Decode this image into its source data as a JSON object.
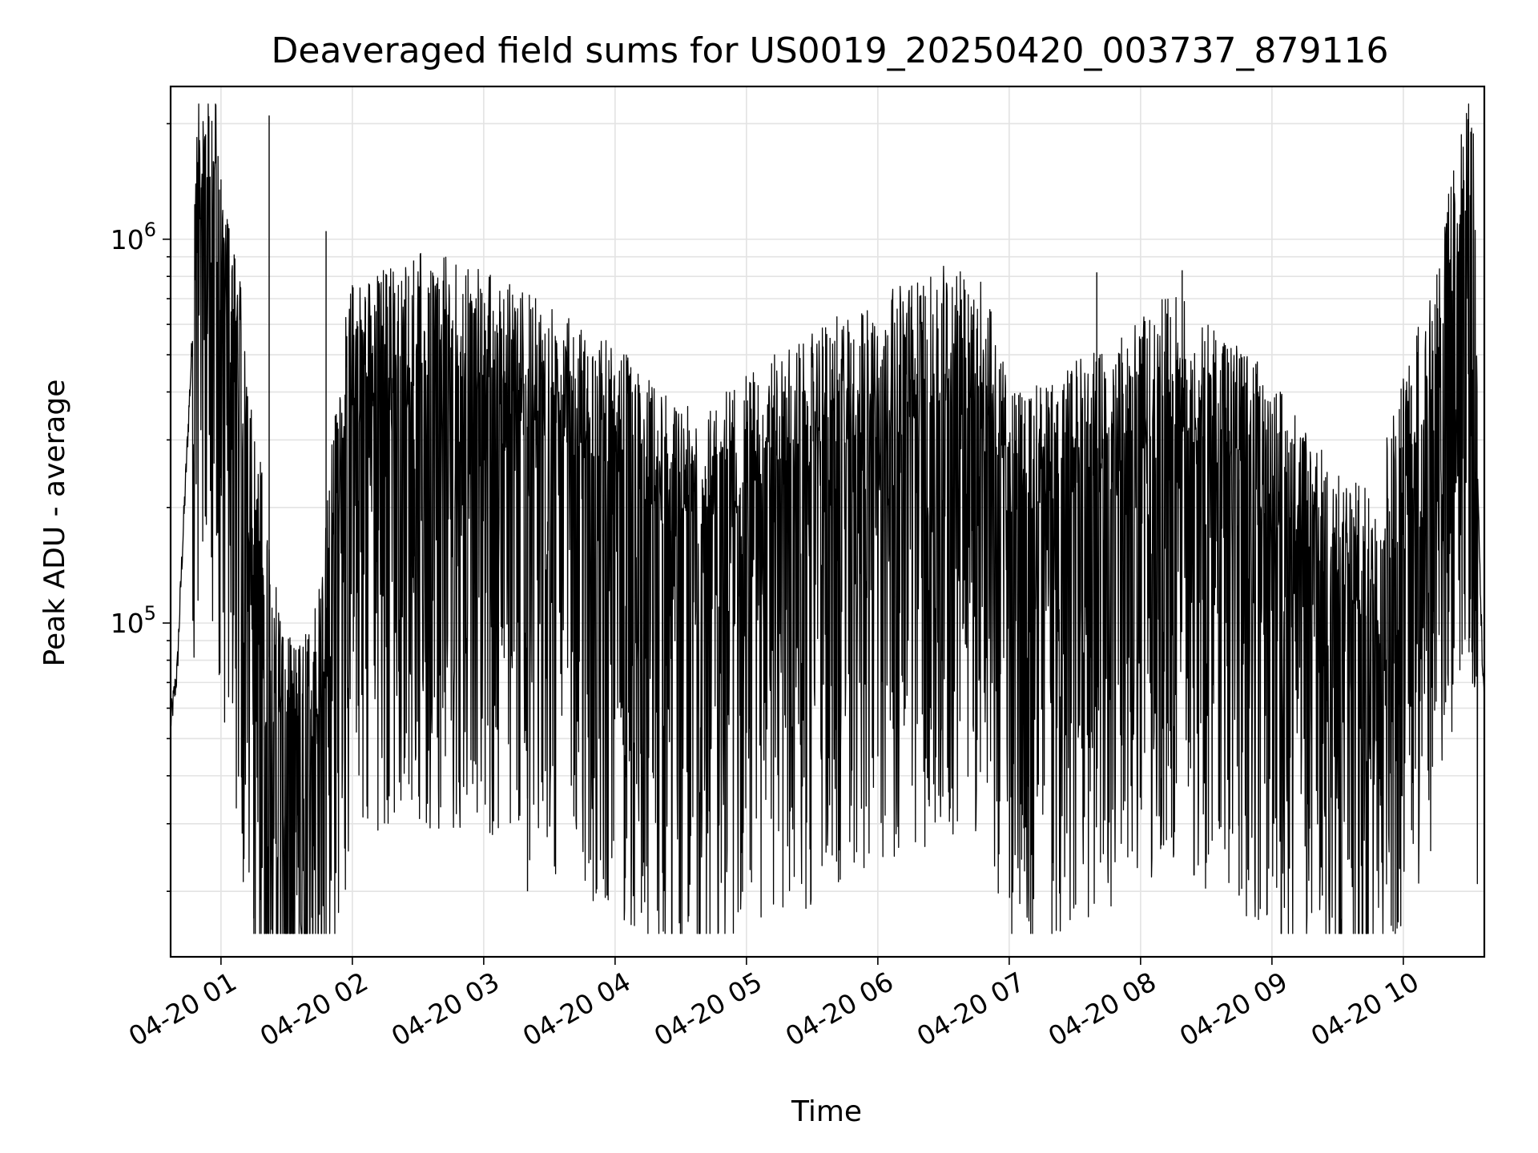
{
  "chart_data": {
    "type": "line",
    "title": "Deaveraged field sums for US0019_20250420_003737_879116",
    "xlabel": "Time",
    "ylabel": "Peak ADU - average",
    "y_scale": "log",
    "ylim": [
      13500,
      2500000
    ],
    "xlim": [
      "2025-04-20 00:37",
      "2025-04-20 10:37"
    ],
    "x_ticks": [
      "04-20 01",
      "04-20 02",
      "04-20 03",
      "04-20 04",
      "04-20 05",
      "04-20 06",
      "04-20 07",
      "04-20 08",
      "04-20 09",
      "04-20 10"
    ],
    "y_ticks": [
      {
        "base": "10",
        "exp": "5",
        "value": 100000
      },
      {
        "base": "10",
        "exp": "6",
        "value": 1000000
      }
    ],
    "grid": true,
    "line_color": "#000000",
    "series": [
      {
        "points": [
          [
            "2025-04-20 00:37",
            55000
          ],
          [
            "2025-04-20 00:40",
            75000
          ],
          [
            "2025-04-20 00:42",
            140000
          ],
          [
            "2025-04-20 00:48",
            750000
          ],
          [
            "2025-04-20 00:50",
            1050000
          ],
          [
            "2025-04-20 00:55",
            1100000
          ],
          [
            "2025-04-20 00:58",
            1300000
          ],
          [
            "2025-04-20 01:00",
            650000
          ],
          [
            "2025-04-20 01:05",
            550000
          ],
          [
            "2025-04-20 01:10",
            300000
          ],
          [
            "2025-04-20 01:15",
            160000
          ],
          [
            "2025-04-20 01:20",
            100000
          ],
          [
            "2025-04-20 01:25",
            60000
          ],
          [
            "2025-04-20 01:30",
            45000
          ],
          [
            "2025-04-20 01:35",
            40000
          ],
          [
            "2025-04-20 01:40",
            45000
          ],
          [
            "2025-04-20 01:45",
            60000
          ],
          [
            "2025-04-20 01:50",
            120000
          ],
          [
            "2025-04-20 01:55",
            250000
          ],
          [
            "2025-04-20 02:00",
            350000
          ],
          [
            "2025-04-20 02:30",
            420000
          ],
          [
            "2025-04-20 03:00",
            380000
          ],
          [
            "2025-04-20 03:30",
            300000
          ],
          [
            "2025-04-20 04:00",
            240000
          ],
          [
            "2025-04-20 04:30",
            160000
          ],
          [
            "2025-04-20 05:00",
            200000
          ],
          [
            "2025-04-20 05:30",
            260000
          ],
          [
            "2025-04-20 06:00",
            320000
          ],
          [
            "2025-04-20 06:30",
            380000
          ],
          [
            "2025-04-20 06:50",
            350000
          ],
          [
            "2025-04-20 07:00",
            180000
          ],
          [
            "2025-04-20 07:30",
            220000
          ],
          [
            "2025-04-20 08:00",
            280000
          ],
          [
            "2025-04-20 08:15",
            330000
          ],
          [
            "2025-04-20 08:30",
            280000
          ],
          [
            "2025-04-20 09:00",
            200000
          ],
          [
            "2025-04-20 09:30",
            110000
          ],
          [
            "2025-04-20 09:45",
            100000
          ],
          [
            "2025-04-20 10:00",
            200000
          ],
          [
            "2025-04-20 10:15",
            400000
          ],
          [
            "2025-04-20 10:25",
            800000
          ],
          [
            "2025-04-20 10:30",
            1100000
          ],
          [
            "2025-04-20 10:32",
            900000
          ],
          [
            "2025-04-20 10:34",
            250000
          ],
          [
            "2025-04-20 10:36",
            80000
          ],
          [
            "2025-04-20 10:37",
            60000
          ]
        ],
        "spikes": [
          [
            "2025-04-20 01:22",
            2100000
          ],
          [
            "2025-04-20 01:48",
            1050000
          ],
          [
            "2025-04-20 02:28",
            880000
          ],
          [
            "2025-04-20 07:40",
            820000
          ],
          [
            "2025-04-20 08:19",
            830000
          ],
          [
            "2025-04-20 01:15",
            17000
          ],
          [
            "2025-04-20 01:18",
            19000
          ],
          [
            "2025-04-20 03:20",
            20000
          ],
          [
            "2025-04-20 08:45",
            19500
          ],
          [
            "2025-04-20 09:23",
            19500
          ]
        ]
      }
    ]
  }
}
